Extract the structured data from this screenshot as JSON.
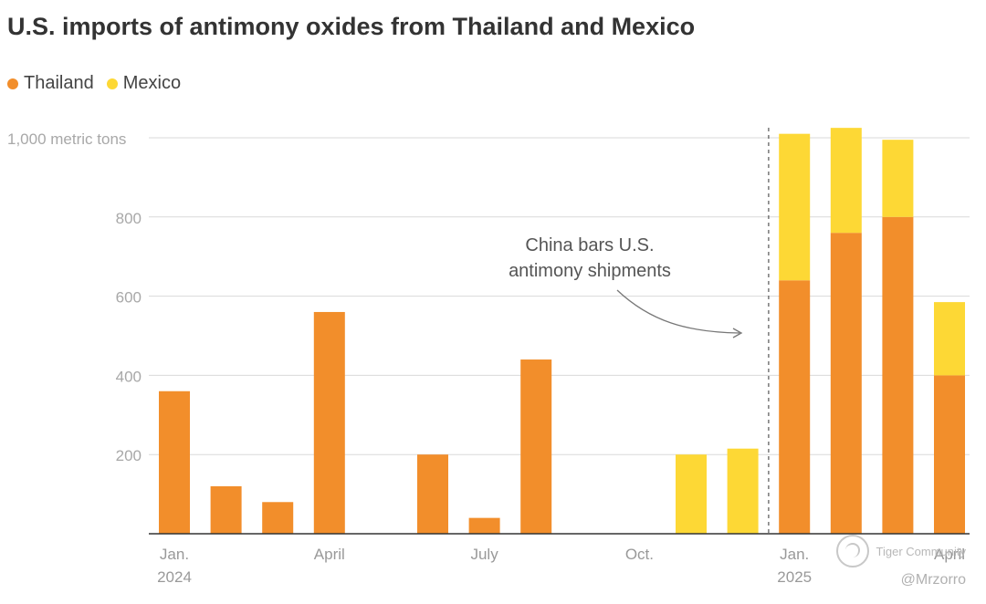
{
  "chart_data": {
    "type": "bar",
    "stacked": true,
    "title": "U.S. imports of antimony oxides from Thailand and Mexico",
    "unit_label": "1,000 metric tons",
    "ylim": [
      0,
      1000
    ],
    "yticks": [
      {
        "value": 200,
        "label": "200"
      },
      {
        "value": 400,
        "label": "400"
      },
      {
        "value": 600,
        "label": "600"
      },
      {
        "value": 800,
        "label": "800"
      },
      {
        "value": 1000,
        "label": "1,000 metric tons"
      }
    ],
    "categories": [
      "Jan 2024",
      "Feb 2024",
      "Mar 2024",
      "Apr 2024",
      "May 2024",
      "Jun 2024",
      "Jul 2024",
      "Aug 2024",
      "Sep 2024",
      "Oct 2024",
      "Nov 2024",
      "Dec 2024",
      "Jan 2025",
      "Feb 2025",
      "Mar 2025",
      "Apr 2025"
    ],
    "xtick_labels": [
      {
        "index": 0,
        "lines": [
          "Jan.",
          "2024"
        ]
      },
      {
        "index": 3,
        "lines": [
          "April"
        ]
      },
      {
        "index": 6,
        "lines": [
          "July"
        ]
      },
      {
        "index": 9,
        "lines": [
          "Oct."
        ]
      },
      {
        "index": 12,
        "lines": [
          "Jan.",
          "2025"
        ]
      },
      {
        "index": 15,
        "lines": [
          "April"
        ]
      }
    ],
    "series": [
      {
        "name": "Thailand",
        "color": "#F28E2B",
        "values": [
          360,
          120,
          80,
          560,
          0,
          200,
          40,
          440,
          0,
          0,
          0,
          0,
          640,
          760,
          800,
          400
        ]
      },
      {
        "name": "Mexico",
        "color": "#FDD835",
        "values": [
          0,
          0,
          0,
          0,
          0,
          0,
          0,
          0,
          0,
          0,
          200,
          215,
          370,
          265,
          195,
          185
        ]
      }
    ],
    "annotation": {
      "lines": [
        "China bars U.S.",
        "antimony shipments"
      ],
      "between_indices": [
        11,
        12
      ]
    },
    "legend": "top-left",
    "grid": true
  },
  "watermark": {
    "brand": "Tiger Community",
    "handle": "@Mrzorro"
  }
}
